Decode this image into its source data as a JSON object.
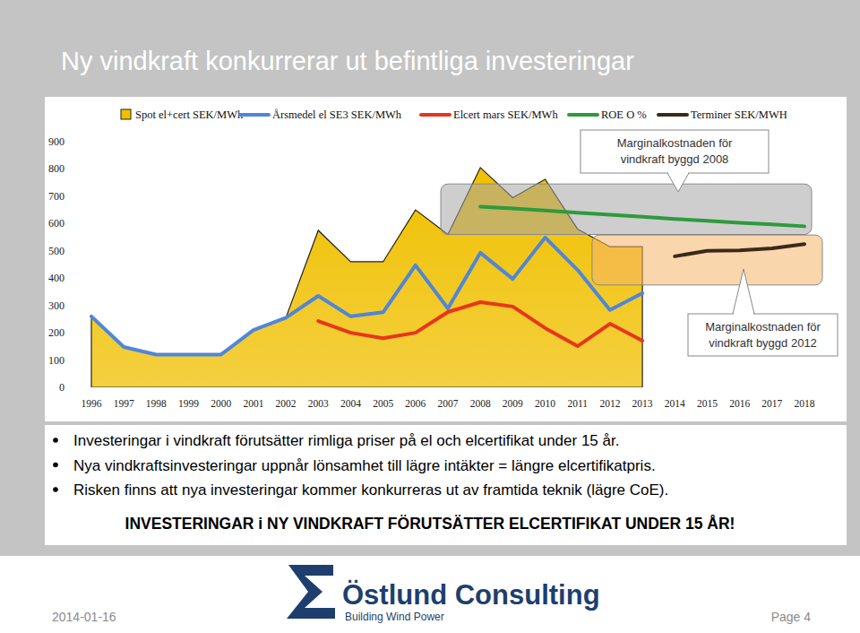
{
  "slide": {
    "title": "Ny vindkraft konkurrerar ut befintliga investeringar",
    "bullets": [
      "Investeringar i vindkraft förutsätter rimliga priser på el och elcertifikat under 15 år.",
      "Nya vindkraftsinvesteringar uppnår lönsamhet till lägre intäkter = längre elcertifikatpris.",
      "Risken finns att nya investeringar kommer konkurreras ut av framtida teknik (lägre CoE)."
    ],
    "conclusion": "INVESTERINGAR i NY VINDKRAFT FÖRUTSÄTTER ELCERTIFIKAT UNDER 15 ÅR!",
    "logo": {
      "name": "Östlund Consulting",
      "tagline": "Building Wind Power"
    },
    "date": "2014-01-16",
    "page": "Page 4"
  },
  "chart_data": {
    "type": "line",
    "categories": [
      "1996",
      "1997",
      "1998",
      "1999",
      "2000",
      "2001",
      "2002",
      "2003",
      "2004",
      "2005",
      "2006",
      "2007",
      "2008",
      "2009",
      "2010",
      "2011",
      "2012",
      "2013",
      "2014",
      "2015",
      "2016",
      "2017",
      "2018"
    ],
    "series": [
      {
        "name": "Spot el+cert SEK/MWh",
        "type": "area",
        "color": "#f0c000",
        "values": [
          260,
          148,
          120,
          120,
          120,
          210,
          255,
          575,
          460,
          460,
          650,
          560,
          805,
          695,
          762,
          580,
          515,
          515,
          null,
          null,
          null,
          null,
          null
        ]
      },
      {
        "name": "Årsmedel el SE3 SEK/MWh",
        "type": "line",
        "color": "#4f86d8",
        "values": [
          260,
          148,
          120,
          120,
          120,
          210,
          255,
          335,
          260,
          275,
          447,
          289,
          493,
          397,
          549,
          430,
          283,
          345,
          null,
          null,
          null,
          null,
          null
        ]
      },
      {
        "name": "Elcert mars SEK/MWh",
        "type": "line",
        "color": "#e8361c",
        "values": [
          null,
          null,
          null,
          null,
          null,
          null,
          null,
          243,
          200,
          180,
          200,
          276,
          312,
          296,
          217,
          151,
          233,
          171,
          null,
          null,
          null,
          null,
          null
        ]
      },
      {
        "name": "ROE O %",
        "type": "line",
        "color": "#2e9a3c",
        "values": [
          null,
          null,
          null,
          null,
          null,
          null,
          null,
          null,
          null,
          null,
          null,
          null,
          662,
          655,
          648,
          640,
          632,
          625,
          617,
          610,
          603,
          597,
          590
        ]
      },
      {
        "name": "Terminer SEK/MWH",
        "type": "line",
        "color": "#3b2a1a",
        "values": [
          null,
          null,
          null,
          null,
          null,
          null,
          null,
          null,
          null,
          null,
          null,
          null,
          null,
          null,
          null,
          null,
          null,
          null,
          480,
          500,
          502,
          509,
          525
        ]
      }
    ],
    "annotations": [
      {
        "text": [
          "Marginalkostnaden för",
          "vindkraft byggd 2008"
        ],
        "from": "2007",
        "to": "2018",
        "low": 560,
        "high": 745,
        "color": "#a6a6a6"
      },
      {
        "text": [
          "Marginalkostnaden för",
          "vindkraft byggd 2012"
        ],
        "from": "2012",
        "to": "2018",
        "low": 375,
        "high": 558,
        "color": "#f5b46a"
      }
    ],
    "ylim": [
      0,
      900
    ],
    "yticks": [
      0,
      100,
      200,
      300,
      400,
      500,
      600,
      700,
      800,
      900
    ],
    "grid": false,
    "legend": "top"
  }
}
